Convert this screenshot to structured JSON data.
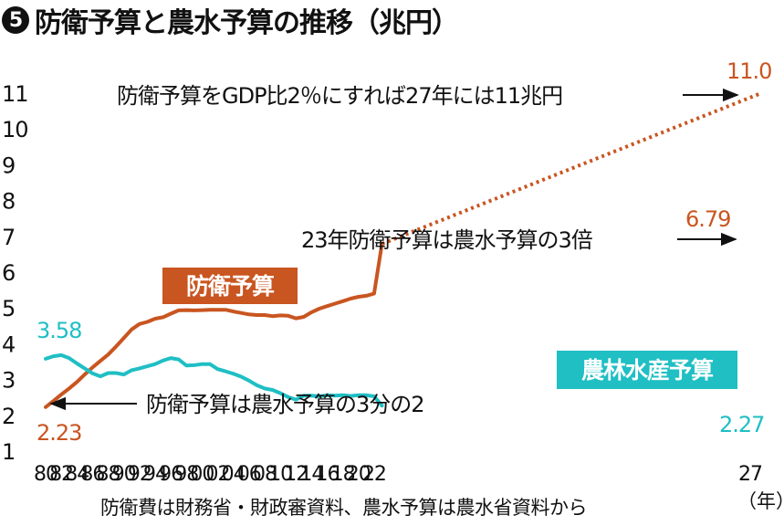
{
  "header": {
    "badge": "5",
    "title": "防衛予算と農水予算の推移（兆円）"
  },
  "footer": {
    "source": "防衛費は財務省・財政審資料、農水予算は農水省資料から",
    "unit": "（年）"
  },
  "colors": {
    "defense": "#c95520",
    "agri": "#1fbfc4",
    "text": "#111111"
  },
  "chart_data": {
    "type": "line",
    "y_ticks": [
      "1",
      "2",
      "3",
      "4",
      "5",
      "6",
      "7",
      "8",
      "9",
      "10",
      "11"
    ],
    "x_ticks": [
      "80",
      "82",
      "84",
      "86",
      "88",
      "90",
      "92",
      "94",
      "96",
      "98",
      "00",
      "02",
      "04",
      "06",
      "08",
      "10",
      "12",
      "14",
      "16",
      "18",
      "20",
      "22",
      "27"
    ],
    "ylim": [
      1,
      11
    ],
    "series": [
      {
        "name": "防衛予算",
        "color": "#c95520",
        "x": [
          1980,
          1981,
          1982,
          1983,
          1984,
          1985,
          1986,
          1987,
          1988,
          1989,
          1990,
          1991,
          1992,
          1993,
          1994,
          1995,
          1996,
          1997,
          1998,
          1999,
          2000,
          2001,
          2002,
          2003,
          2004,
          2005,
          2006,
          2007,
          2008,
          2009,
          2010,
          2011,
          2012,
          2013,
          2014,
          2015,
          2016,
          2017,
          2018,
          2019,
          2020,
          2021,
          2022,
          2023
        ],
        "values": [
          2.23,
          2.4,
          2.58,
          2.75,
          2.93,
          3.14,
          3.34,
          3.52,
          3.7,
          3.92,
          4.16,
          4.4,
          4.55,
          4.61,
          4.7,
          4.74,
          4.84,
          4.93,
          4.94,
          4.93,
          4.94,
          4.95,
          4.95,
          4.95,
          4.9,
          4.86,
          4.82,
          4.8,
          4.8,
          4.77,
          4.79,
          4.78,
          4.71,
          4.75,
          4.88,
          4.98,
          5.05,
          5.12,
          5.19,
          5.26,
          5.31,
          5.34,
          5.4,
          6.79
        ]
      },
      {
        "name": "農林水産予算",
        "color": "#1fbfc4",
        "x": [
          1980,
          1981,
          1982,
          1983,
          1984,
          1985,
          1986,
          1987,
          1988,
          1989,
          1990,
          1991,
          1992,
          1993,
          1994,
          1995,
          1996,
          1997,
          1998,
          1999,
          2000,
          2001,
          2002,
          2003,
          2004,
          2005,
          2006,
          2007,
          2008,
          2009,
          2010,
          2011,
          2012,
          2013,
          2014,
          2015,
          2016,
          2017,
          2018,
          2019,
          2020,
          2021,
          2022,
          2023
        ],
        "values": [
          3.58,
          3.65,
          3.68,
          3.6,
          3.45,
          3.31,
          3.17,
          3.09,
          3.18,
          3.18,
          3.14,
          3.26,
          3.31,
          3.37,
          3.43,
          3.53,
          3.6,
          3.56,
          3.39,
          3.4,
          3.43,
          3.43,
          3.29,
          3.23,
          3.16,
          3.08,
          2.97,
          2.84,
          2.75,
          2.71,
          2.62,
          2.51,
          2.44,
          2.55,
          2.55,
          2.53,
          2.56,
          2.55,
          2.56,
          2.54,
          2.56,
          2.56,
          2.53,
          2.27
        ]
      }
    ],
    "projection": {
      "x": [
        2023,
        2027
      ],
      "values": [
        6.79,
        11.0
      ],
      "style": "dotted"
    },
    "labels": {
      "defense_series": "防衛予算",
      "agri_series": "農林水産予算",
      "start_defense": "2.23",
      "start_agri": "3.58",
      "end_agri": "2.27",
      "end_defense_2023": "6.79",
      "end_defense_2027": "11.0"
    },
    "annotations": {
      "gdp": "防衛予算をGDP比2％にすれば27年には11兆円",
      "ratio_2023": "23年防衛予算は農水予算の3倍",
      "ratio_1980": "防衛予算は農水予算の3分の2"
    }
  }
}
